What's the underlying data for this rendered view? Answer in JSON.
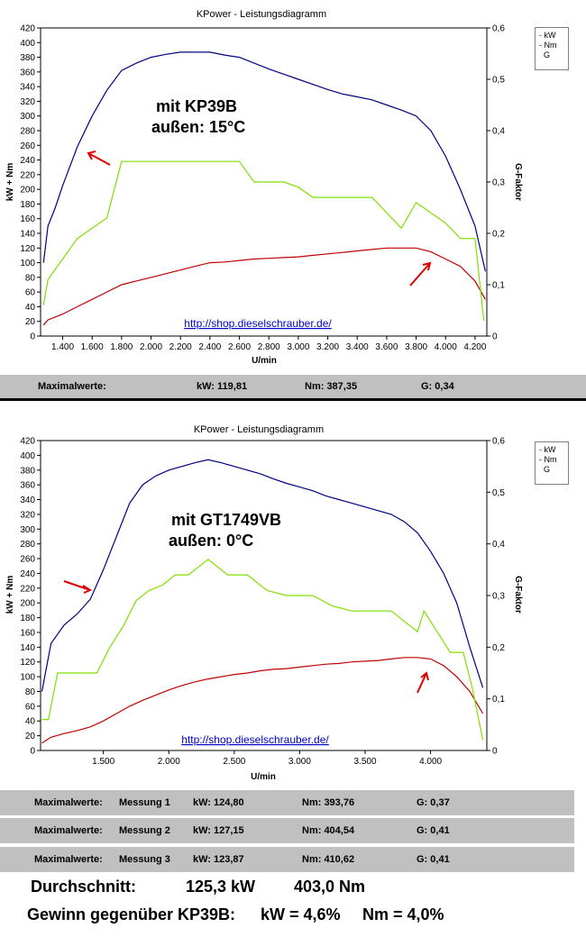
{
  "charts": [
    {
      "title": "KPower - Leistungsdiagramm",
      "ylabel_left": "kW + Nm",
      "ylabel_right": "G-Faktor",
      "xlabel": "U/min",
      "annotation_line1": "mit KP39B",
      "annotation_line2": "außen: 15°C",
      "url": "http://shop.dieselschrauber.de/",
      "legend": [
        "kW",
        "Nm",
        "G"
      ],
      "y_ticks_left": [
        "0",
        "20",
        "40",
        "60",
        "80",
        "100",
        "120",
        "140",
        "160",
        "180",
        "200",
        "220",
        "240",
        "260",
        "280",
        "300",
        "320",
        "340",
        "360",
        "380",
        "400",
        "420"
      ],
      "y_ticks_right": [
        "0",
        "0,1",
        "0,2",
        "0,3",
        "0,4",
        "0,5",
        "0,6"
      ],
      "x_ticks": [
        "1.400",
        "1.600",
        "1.800",
        "2.000",
        "2.200",
        "2.400",
        "2.600",
        "2.800",
        "3.000",
        "3.200",
        "3.400",
        "3.600",
        "3.800",
        "4.000",
        "4.200"
      ]
    },
    {
      "title": "KPower - Leistungsdiagramm",
      "ylabel_left": "kW + Nm",
      "ylabel_right": "G-Faktor",
      "xlabel": "U/min",
      "annotation_line1": "mit GT1749VB",
      "annotation_line2": "außen: 0°C",
      "url": "http://shop.dieselschrauber.de/",
      "legend": [
        "kW",
        "Nm",
        "G"
      ],
      "y_ticks_left": [
        "0",
        "20",
        "40",
        "60",
        "80",
        "100",
        "120",
        "140",
        "160",
        "180",
        "200",
        "220",
        "240",
        "260",
        "280",
        "300",
        "320",
        "340",
        "360",
        "380",
        "400",
        "420"
      ],
      "y_ticks_right": [
        "0",
        "0,1",
        "0,2",
        "0,3",
        "0,4",
        "0,5",
        "0,6"
      ],
      "x_ticks": [
        "1.500",
        "2.000",
        "2.500",
        "3.000",
        "3.500",
        "4.000"
      ]
    }
  ],
  "chart_data": [
    {
      "type": "line",
      "title": "KPower - Leistungsdiagramm",
      "xlabel": "U/min",
      "ylabel": "kW + Nm",
      "ylabel_right": "G-Faktor",
      "xlim": [
        1250,
        4280
      ],
      "ylim": [
        0,
        420
      ],
      "ylim_right": [
        0,
        0.6
      ],
      "legend_position": "top-right",
      "grid": false,
      "series": [
        {
          "name": "Nm",
          "color": "#000080",
          "axis": "left",
          "x": [
            1270,
            1300,
            1350,
            1400,
            1500,
            1600,
            1700,
            1800,
            1900,
            2000,
            2100,
            2200,
            2300,
            2400,
            2500,
            2600,
            2700,
            2800,
            2900,
            3000,
            3100,
            3200,
            3300,
            3400,
            3500,
            3600,
            3700,
            3800,
            3900,
            4000,
            4100,
            4200,
            4270
          ],
          "y": [
            100,
            150,
            175,
            205,
            258,
            300,
            335,
            362,
            372,
            380,
            384,
            387,
            387,
            387,
            383,
            380,
            372,
            364,
            357,
            350,
            343,
            336,
            330,
            326,
            322,
            315,
            308,
            300,
            280,
            245,
            200,
            150,
            88
          ]
        },
        {
          "name": "kW",
          "color": "#c00000",
          "axis": "left",
          "x": [
            1270,
            1300,
            1400,
            1500,
            1600,
            1700,
            1800,
            1900,
            2000,
            2100,
            2200,
            2300,
            2400,
            2500,
            2600,
            2700,
            2800,
            2900,
            3000,
            3100,
            3200,
            3300,
            3400,
            3500,
            3600,
            3700,
            3800,
            3900,
            4000,
            4100,
            4200,
            4270
          ],
          "y": [
            15,
            22,
            30,
            40,
            50,
            60,
            70,
            75,
            80,
            85,
            90,
            95,
            100,
            101,
            103,
            105,
            106,
            107,
            108,
            110,
            112,
            114,
            116,
            118,
            120,
            120,
            120,
            115,
            105,
            95,
            75,
            50
          ]
        },
        {
          "name": "G",
          "color": "#80e000",
          "axis": "right",
          "x": [
            1270,
            1300,
            1400,
            1500,
            1600,
            1700,
            1800,
            2600,
            2700,
            2800,
            2900,
            3000,
            3100,
            3200,
            3300,
            3400,
            3500,
            3600,
            3700,
            3800,
            3900,
            4000,
            4100,
            4200,
            4260
          ],
          "y": [
            0.06,
            0.11,
            0.15,
            0.19,
            0.21,
            0.23,
            0.34,
            0.34,
            0.3,
            0.3,
            0.3,
            0.29,
            0.27,
            0.27,
            0.27,
            0.27,
            0.27,
            0.24,
            0.21,
            0.26,
            0.24,
            0.22,
            0.19,
            0.19,
            0.03
          ]
        }
      ]
    },
    {
      "type": "line",
      "title": "KPower - Leistungsdiagramm",
      "xlabel": "U/min",
      "ylabel": "kW + Nm",
      "ylabel_right": "G-Faktor",
      "xlim": [
        1020,
        4430
      ],
      "ylim": [
        0,
        420
      ],
      "ylim_right": [
        0,
        0.6
      ],
      "legend_position": "top-right",
      "grid": false,
      "series": [
        {
          "name": "Nm",
          "color": "#000080",
          "axis": "left",
          "x": [
            1030,
            1100,
            1200,
            1300,
            1400,
            1500,
            1600,
            1700,
            1800,
            1900,
            2000,
            2100,
            2200,
            2300,
            2400,
            2500,
            2600,
            2700,
            2800,
            2900,
            3000,
            3100,
            3200,
            3300,
            3400,
            3500,
            3600,
            3700,
            3800,
            3900,
            4000,
            4100,
            4200,
            4300,
            4400
          ],
          "y": [
            80,
            145,
            170,
            185,
            205,
            245,
            290,
            335,
            360,
            372,
            380,
            385,
            390,
            394,
            390,
            385,
            380,
            375,
            368,
            362,
            357,
            352,
            345,
            340,
            335,
            330,
            325,
            320,
            310,
            295,
            270,
            240,
            200,
            140,
            85
          ]
        },
        {
          "name": "kW",
          "color": "#c00000",
          "axis": "left",
          "x": [
            1030,
            1100,
            1200,
            1300,
            1400,
            1500,
            1600,
            1700,
            1800,
            1900,
            2000,
            2100,
            2200,
            2300,
            2400,
            2500,
            2600,
            2700,
            2800,
            2900,
            3000,
            3100,
            3200,
            3300,
            3400,
            3500,
            3600,
            3700,
            3800,
            3900,
            4000,
            4100,
            4200,
            4300,
            4400
          ],
          "y": [
            10,
            18,
            23,
            27,
            32,
            40,
            50,
            60,
            68,
            75,
            82,
            88,
            93,
            97,
            100,
            103,
            105,
            108,
            110,
            111,
            113,
            115,
            117,
            118,
            120,
            121,
            122,
            124,
            126,
            126,
            124,
            115,
            100,
            80,
            50
          ]
        },
        {
          "name": "G",
          "color": "#80e000",
          "axis": "right",
          "x": [
            1030,
            1080,
            1150,
            1250,
            1350,
            1450,
            1550,
            1650,
            1750,
            1850,
            1950,
            2050,
            2150,
            2300,
            2450,
            2600,
            2750,
            2900,
            3100,
            3250,
            3400,
            3550,
            3700,
            3800,
            3900,
            3950,
            4050,
            4150,
            4250,
            4320,
            4400
          ],
          "y": [
            0.06,
            0.06,
            0.15,
            0.15,
            0.15,
            0.15,
            0.2,
            0.24,
            0.29,
            0.31,
            0.32,
            0.34,
            0.34,
            0.37,
            0.34,
            0.34,
            0.31,
            0.3,
            0.3,
            0.28,
            0.27,
            0.27,
            0.27,
            0.25,
            0.23,
            0.27,
            0.23,
            0.19,
            0.19,
            0.12,
            0.02
          ]
        }
      ]
    }
  ],
  "summary1": {
    "label": "Maximalwerte:",
    "kw": "kW: 119,81",
    "nm": "Nm: 387,35",
    "g": "G: 0,34"
  },
  "summary2": [
    {
      "label": "Maximalwerte:",
      "messung": "Messung 1",
      "kw": "kW: 124,80",
      "nm": "Nm: 393,76",
      "g": "G: 0,37"
    },
    {
      "label": "Maximalwerte:",
      "messung": "Messung 2",
      "kw": "kW: 127,15",
      "nm": "Nm: 404,54",
      "g": "G: 0,41"
    },
    {
      "label": "Maximalwerte:",
      "messung": "Messung 3",
      "kw": "kW: 123,87",
      "nm": "Nm: 410,62",
      "g": "G: 0,41"
    }
  ],
  "average": {
    "label": "Durchschnitt:",
    "kw": "125,3 kW",
    "nm": "403,0 Nm"
  },
  "gain": {
    "label": "Gewinn gegenüber KP39B:",
    "kw": "kW = 4,6%",
    "nm": "Nm = 4,0%"
  },
  "colors": {
    "nm": "#000080",
    "kw": "#c00000",
    "g": "#80e000",
    "arrow": "#e00000",
    "link": "#0000cc",
    "bar": "#c0c0c0"
  }
}
